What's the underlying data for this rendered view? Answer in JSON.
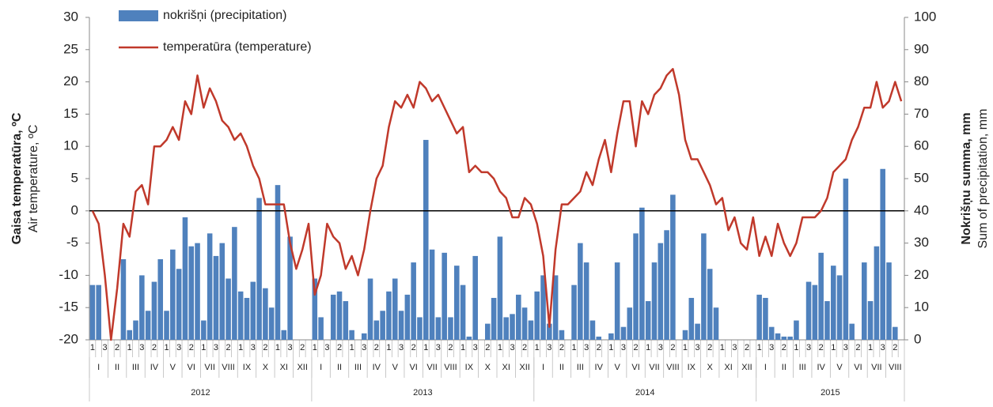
{
  "chart_data": {
    "type": "combo",
    "y_label": "Gaisa temperatūra, ºC",
    "y_label_en": "Air temperature, ºC",
    "y2_label": "Nokrišņu summa, mm",
    "y2_label_en": "Sum of precipitation, mm",
    "ylim": [
      -20,
      30
    ],
    "yticks": [
      -20,
      -15,
      -10,
      -5,
      0,
      5,
      10,
      15,
      20,
      25,
      30
    ],
    "y2lim": [
      0,
      100
    ],
    "y2ticks": [
      0,
      10,
      20,
      30,
      40,
      50,
      60,
      70,
      80,
      90,
      100
    ],
    "categories": [
      "1",
      null,
      "3",
      null,
      "2",
      null,
      "1",
      null,
      "3",
      null,
      "2",
      null,
      "1",
      null,
      "3",
      null,
      "2",
      null,
      "1",
      null,
      "3",
      null,
      "2",
      null,
      "1",
      null,
      "3",
      null,
      "2",
      null,
      "1",
      null,
      "3",
      null,
      "2",
      null,
      "1",
      null,
      "3",
      null,
      "2",
      null,
      "1",
      null,
      "3",
      null,
      "2",
      null,
      "1",
      null,
      "3",
      null,
      "2",
      null,
      "1",
      null,
      "3",
      null,
      "2",
      null,
      "1",
      null,
      "3",
      null,
      "2",
      null,
      "1",
      null,
      "3",
      null,
      "2",
      null,
      "1",
      null,
      "3",
      null,
      "2",
      null,
      "1",
      null,
      "3",
      null,
      "2",
      null,
      "1",
      null,
      "3",
      null,
      "2",
      null,
      "1",
      null,
      "3",
      null,
      "2",
      null,
      "1",
      null,
      "3",
      null,
      "2",
      null,
      "1",
      null,
      "3",
      null,
      "2",
      null,
      "1",
      null,
      "3",
      null,
      "2",
      null,
      "1",
      null,
      "3",
      null,
      "2",
      null,
      "1",
      null,
      "3",
      null,
      "2",
      null,
      "1",
      null,
      "3",
      null,
      "2",
      null
    ],
    "years": [
      {
        "label": "2012",
        "months": [
          "I",
          "II",
          "III",
          "IV",
          "V",
          "VI",
          "VII",
          "VIII",
          "IX",
          "X",
          "XI",
          "XII"
        ]
      },
      {
        "label": "2013",
        "months": [
          "I",
          "II",
          "III",
          "IV",
          "V",
          "VI",
          "VII",
          "VIII",
          "IX",
          "X",
          "XI",
          "XII"
        ]
      },
      {
        "label": "2014",
        "months": [
          "I",
          "II",
          "III",
          "IV",
          "V",
          "VI",
          "VII",
          "VIII",
          "IX",
          "X",
          "XI",
          "XII"
        ]
      },
      {
        "label": "2015",
        "months": [
          "I",
          "II",
          "III",
          "IV",
          "V",
          "VI",
          "VII",
          "VIII"
        ]
      }
    ],
    "series": [
      {
        "name": "nokrišņi (precipitation)",
        "type": "bar",
        "axis": "y2",
        "color": "#4f81bd",
        "values": [
          17,
          17,
          0,
          0,
          0,
          25,
          3,
          6,
          20,
          9,
          18,
          25,
          9,
          28,
          22,
          38,
          29,
          30,
          6,
          33,
          26,
          30,
          19,
          35,
          15,
          13,
          18,
          44,
          16,
          10,
          48,
          3,
          32,
          0,
          0,
          0,
          19,
          7,
          0,
          14,
          15,
          12,
          3,
          0,
          2,
          19,
          6,
          9,
          15,
          19,
          9,
          14,
          24,
          7,
          62,
          28,
          7,
          27,
          7,
          23,
          17,
          1,
          26,
          0,
          5,
          13,
          32,
          7,
          8,
          14,
          10,
          6,
          15,
          20,
          5,
          20,
          3,
          0,
          17,
          30,
          24,
          6,
          1,
          0,
          2,
          24,
          4,
          10,
          33,
          41,
          12,
          24,
          30,
          34,
          45,
          0,
          3,
          13,
          5,
          33,
          22,
          10,
          0,
          0,
          0,
          0,
          0,
          0,
          14,
          13,
          4,
          2,
          1,
          1,
          6,
          0,
          18,
          17,
          27,
          12,
          23,
          20,
          50,
          5,
          0,
          24,
          12,
          29,
          53,
          24,
          4,
          0
        ]
      },
      {
        "name": "temperatūra (temperature)",
        "type": "line",
        "axis": "y",
        "color": "#c0392b",
        "values": [
          0,
          -2,
          -10,
          -20,
          -12,
          -2,
          -4,
          3,
          4,
          1,
          10,
          10,
          11,
          13,
          11,
          17,
          15,
          21,
          16,
          19,
          17,
          14,
          13,
          11,
          12,
          10,
          7,
          5,
          1,
          1,
          1,
          1,
          -5,
          -9,
          -6,
          -2,
          -13,
          -10,
          -2,
          -4,
          -5,
          -9,
          -7,
          -10,
          -6,
          0,
          5,
          7,
          13,
          17,
          16,
          18,
          16,
          20,
          19,
          17,
          18,
          16,
          14,
          12,
          13,
          6,
          7,
          6,
          6,
          5,
          3,
          2,
          -1,
          -1,
          2,
          1,
          -2,
          -7,
          -18,
          -6,
          1,
          1,
          2,
          3,
          6,
          4,
          8,
          11,
          6,
          12,
          17,
          17,
          10,
          17,
          15,
          18,
          19,
          21,
          22,
          18,
          11,
          8,
          8,
          6,
          4,
          1,
          2,
          -3,
          -1,
          -5,
          -6,
          -1,
          -7,
          -4,
          -7,
          -2,
          -5,
          -7,
          -5,
          -1,
          -1,
          -1,
          0,
          2,
          6,
          7,
          8,
          11,
          13,
          16,
          16,
          20,
          16,
          17,
          20,
          17
        ]
      }
    ]
  }
}
